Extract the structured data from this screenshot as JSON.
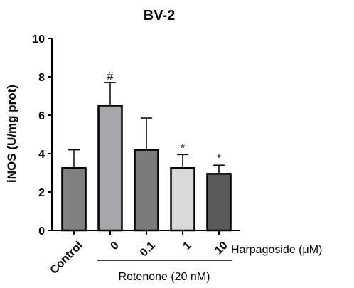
{
  "chart_data": {
    "type": "bar",
    "title": "BV-2",
    "ylabel": "iNOS (U/mg prot)",
    "xlabel": "",
    "ylim": [
      0,
      10
    ],
    "yticks": [
      "0",
      "2",
      "4",
      "6",
      "8",
      "10"
    ],
    "categories": [
      "Control",
      "0",
      "0.1",
      "1",
      "10"
    ],
    "values": [
      3.25,
      6.5,
      4.2,
      3.25,
      2.95
    ],
    "errors": [
      0.95,
      1.2,
      1.65,
      0.7,
      0.45
    ],
    "significance": [
      "",
      "#",
      "",
      "*",
      "*"
    ],
    "bar_colors": [
      "#808080",
      "#a6a6ab",
      "#7a7a7a",
      "#d9d9d9",
      "#595959"
    ],
    "treatment_label": "Harpagoside (μM)",
    "group_label": "Rotenone (20 nM)"
  }
}
